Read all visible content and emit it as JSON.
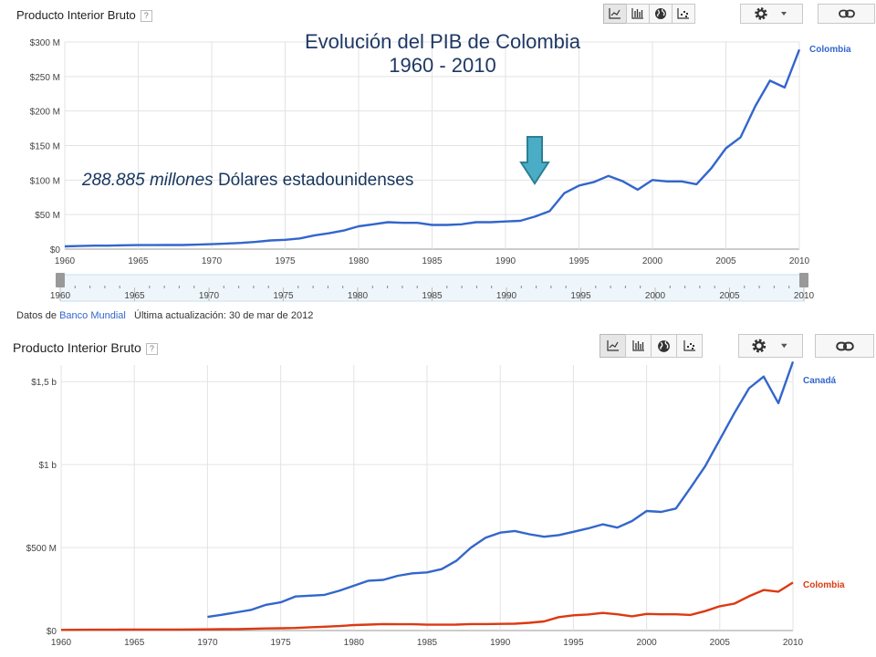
{
  "panel1": {
    "header_title": "Producto Interior Bruto",
    "help_label": "?",
    "chart_title_line1": "Evolución del PIB de Colombia",
    "chart_title_line2": "1960 - 2010",
    "annotation_value": "288.885 millones",
    "annotation_unit": "Dólares estadounidenses",
    "footer_prefix": "Datos de",
    "footer_source": "Banco Mundial",
    "footer_updated": "Última actualización: 30 de mar de 2012",
    "toolbar_icons": [
      "line-chart-icon",
      "bar-chart-icon",
      "globe-icon",
      "scatter-chart-icon"
    ],
    "settings_icons": [
      "gear-icon",
      "dropdown-caret-icon"
    ],
    "link_icon": "link-icon"
  },
  "panel2": {
    "header_title": "Producto Interior Bruto",
    "help_label": "?",
    "toolbar_icons": [
      "line-chart-icon",
      "bar-chart-icon",
      "globe-icon",
      "scatter-chart-icon"
    ],
    "settings_icons": [
      "gear-icon",
      "dropdown-caret-icon"
    ],
    "link_icon": "link-icon"
  },
  "chart_data": [
    {
      "type": "line",
      "ylim": [
        0,
        300
      ],
      "xlim": [
        1960,
        2010
      ],
      "grid": true,
      "legend": "right",
      "y_tick_labels": [
        "$0",
        "$50 M",
        "$100 M",
        "$150 M",
        "$200 M",
        "$250 M",
        "$300 M"
      ],
      "x_tick_labels": [
        "1960",
        "1965",
        "1970",
        "1975",
        "1980",
        "1985",
        "1990",
        "1995",
        "2000",
        "2005",
        "2010"
      ],
      "x": [
        1960,
        1961,
        1962,
        1963,
        1964,
        1965,
        1966,
        1967,
        1968,
        1969,
        1970,
        1971,
        1972,
        1973,
        1974,
        1975,
        1976,
        1977,
        1978,
        1979,
        1980,
        1981,
        1982,
        1983,
        1984,
        1985,
        1986,
        1987,
        1988,
        1989,
        1990,
        1991,
        1992,
        1993,
        1994,
        1995,
        1996,
        1997,
        1998,
        1999,
        2000,
        2001,
        2002,
        2003,
        2004,
        2005,
        2006,
        2007,
        2008,
        2009,
        2010
      ],
      "series": [
        {
          "name": "Colombia",
          "color": "#3366cc",
          "values": [
            4,
            4.5,
            5,
            5,
            5.5,
            5.8,
            5.8,
            6,
            6,
            6.5,
            7.2,
            8,
            9,
            10.5,
            12.5,
            13.5,
            15.5,
            20,
            23,
            27,
            33,
            36,
            39,
            38,
            38,
            35,
            35,
            36,
            39,
            39,
            40,
            41,
            47,
            55,
            81,
            92,
            97,
            106,
            98,
            86,
            100,
            98,
            98,
            94,
            117,
            146,
            162,
            207,
            244,
            234,
            289
          ]
        }
      ],
      "range_selector_labels": [
        "1960",
        "1965",
        "1970",
        "1975",
        "1980",
        "1985",
        "1990",
        "1995",
        "2000",
        "2005",
        "2010"
      ]
    },
    {
      "type": "line",
      "ylim": [
        0,
        1600
      ],
      "xlim": [
        1960,
        2010
      ],
      "grid": true,
      "legend": "right",
      "y_tick_labels": [
        "$0",
        "$500 M",
        "$1 b",
        "$1,5 b"
      ],
      "x_tick_labels": [
        "1960",
        "1965",
        "1970",
        "1975",
        "1980",
        "1985",
        "1990",
        "1995",
        "2000",
        "2005",
        "2010"
      ],
      "x": [
        1960,
        1961,
        1962,
        1963,
        1964,
        1965,
        1966,
        1967,
        1968,
        1969,
        1970,
        1971,
        1972,
        1973,
        1974,
        1975,
        1976,
        1977,
        1978,
        1979,
        1980,
        1981,
        1982,
        1983,
        1984,
        1985,
        1986,
        1987,
        1988,
        1989,
        1990,
        1991,
        1992,
        1993,
        1994,
        1995,
        1996,
        1997,
        1998,
        1999,
        2000,
        2001,
        2002,
        2003,
        2004,
        2005,
        2006,
        2007,
        2008,
        2009,
        2010
      ],
      "series": [
        {
          "name": "Canadá",
          "color": "#3366cc",
          "values": [
            null,
            null,
            null,
            null,
            null,
            null,
            null,
            null,
            null,
            null,
            82,
            95,
            110,
            125,
            155,
            170,
            205,
            210,
            215,
            240,
            270,
            300,
            305,
            330,
            345,
            350,
            370,
            420,
            500,
            560,
            590,
            600,
            580,
            565,
            575,
            595,
            615,
            640,
            620,
            660,
            720,
            715,
            735,
            860,
            990,
            1150,
            1310,
            1460,
            1530,
            1370,
            1620
          ]
        },
        {
          "name": "Colombia",
          "color": "#dc3912",
          "values": [
            4,
            4.5,
            5,
            5,
            5.5,
            5.8,
            5.8,
            6,
            6,
            6.5,
            7.2,
            8,
            9,
            10.5,
            12.5,
            13.5,
            15.5,
            20,
            23,
            27,
            33,
            36,
            39,
            38,
            38,
            35,
            35,
            36,
            39,
            39,
            40,
            41,
            47,
            55,
            81,
            92,
            97,
            106,
            98,
            86,
            100,
            98,
            98,
            94,
            117,
            146,
            162,
            207,
            244,
            234,
            289
          ]
        }
      ]
    }
  ]
}
